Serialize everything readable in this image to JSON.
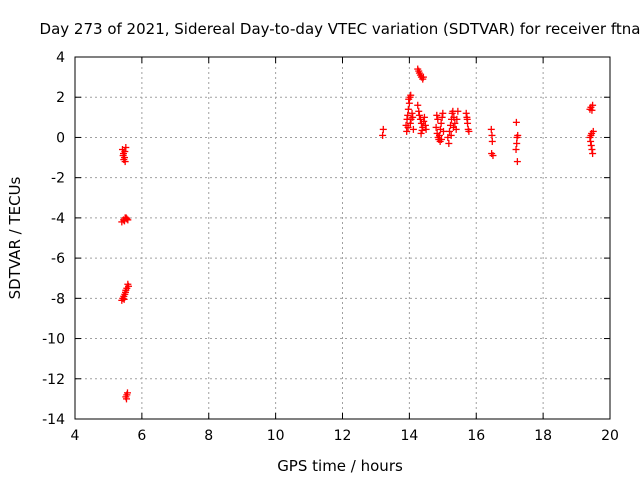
{
  "chart_data": {
    "type": "scatter",
    "title": "Day 273 of 2021, Sidereal Day-to-day VTEC variation (SDTVAR) for receiver ftna",
    "xlabel": "GPS time / hours",
    "ylabel": "SDTVAR / TECUs",
    "xlim": [
      4,
      20
    ],
    "ylim": [
      -14,
      4
    ],
    "xticks": [
      4,
      6,
      8,
      10,
      12,
      14,
      16,
      18,
      20
    ],
    "yticks": [
      -14,
      -12,
      -10,
      -8,
      -6,
      -4,
      -2,
      0,
      2,
      4
    ],
    "grid": true,
    "marker": "plus",
    "color": "#ff0000",
    "series": [
      {
        "name": "SDTVAR",
        "points": [
          [
            5.42,
            -0.6
          ],
          [
            5.45,
            -0.8
          ],
          [
            5.48,
            -1.0
          ],
          [
            5.5,
            -1.2
          ],
          [
            5.52,
            -0.5
          ],
          [
            5.46,
            -1.1
          ],
          [
            5.44,
            -0.9
          ],
          [
            5.49,
            -0.7
          ],
          [
            5.4,
            -4.2
          ],
          [
            5.45,
            -4.1
          ],
          [
            5.5,
            -4.0
          ],
          [
            5.55,
            -4.05
          ],
          [
            5.48,
            -4.15
          ],
          [
            5.53,
            -4.0
          ],
          [
            5.58,
            -4.1
          ],
          [
            5.4,
            -8.1
          ],
          [
            5.43,
            -8.0
          ],
          [
            5.46,
            -7.9
          ],
          [
            5.49,
            -7.8
          ],
          [
            5.52,
            -7.6
          ],
          [
            5.55,
            -7.5
          ],
          [
            5.58,
            -7.3
          ],
          [
            5.6,
            -7.4
          ],
          [
            5.47,
            -8.05
          ],
          [
            5.51,
            -7.7
          ],
          [
            5.52,
            -12.9
          ],
          [
            5.55,
            -12.8
          ],
          [
            5.57,
            -12.7
          ],
          [
            5.54,
            -13.0
          ],
          [
            13.2,
            0.1
          ],
          [
            13.22,
            0.4
          ],
          [
            13.9,
            0.6
          ],
          [
            13.93,
            0.9
          ],
          [
            13.95,
            1.1
          ],
          [
            13.97,
            1.4
          ],
          [
            14.0,
            1.7
          ],
          [
            14.02,
            2.0
          ],
          [
            14.04,
            2.1
          ],
          [
            13.92,
            0.3
          ],
          [
            13.96,
            0.5
          ],
          [
            14.03,
            0.7
          ],
          [
            14.05,
            0.9
          ],
          [
            14.08,
            1.2
          ],
          [
            14.1,
            1.0
          ],
          [
            14.12,
            0.4
          ],
          [
            13.98,
            1.9
          ],
          [
            14.25,
            3.4
          ],
          [
            14.28,
            3.3
          ],
          [
            14.3,
            3.2
          ],
          [
            14.33,
            3.1
          ],
          [
            14.36,
            3.0
          ],
          [
            14.4,
            2.9
          ],
          [
            14.42,
            3.0
          ],
          [
            14.25,
            1.6
          ],
          [
            14.28,
            1.3
          ],
          [
            14.3,
            1.1
          ],
          [
            14.33,
            0.9
          ],
          [
            14.36,
            0.7
          ],
          [
            14.4,
            0.5
          ],
          [
            14.43,
            0.8
          ],
          [
            14.45,
            1.0
          ],
          [
            14.48,
            0.6
          ],
          [
            14.5,
            0.4
          ],
          [
            14.35,
            0.2
          ],
          [
            14.38,
            0.35
          ],
          [
            14.8,
            0.5
          ],
          [
            14.83,
            0.2
          ],
          [
            14.86,
            0.0
          ],
          [
            14.88,
            -0.1
          ],
          [
            14.9,
            0.1
          ],
          [
            14.93,
            0.4
          ],
          [
            14.95,
            0.7
          ],
          [
            14.98,
            1.0
          ],
          [
            15.0,
            1.2
          ],
          [
            14.85,
            0.9
          ],
          [
            14.82,
            1.1
          ],
          [
            14.92,
            -0.2
          ],
          [
            14.96,
            -0.1
          ],
          [
            15.02,
            0.3
          ],
          [
            15.15,
            0.0
          ],
          [
            15.18,
            -0.3
          ],
          [
            15.2,
            0.3
          ],
          [
            15.23,
            0.6
          ],
          [
            15.26,
            0.9
          ],
          [
            15.28,
            1.2
          ],
          [
            15.3,
            1.3
          ],
          [
            15.33,
            1.0
          ],
          [
            15.36,
            0.7
          ],
          [
            15.4,
            0.4
          ],
          [
            15.42,
            0.9
          ],
          [
            15.45,
            1.3
          ],
          [
            15.25,
            0.1
          ],
          [
            15.32,
            0.5
          ],
          [
            15.7,
            1.2
          ],
          [
            15.72,
            1.0
          ],
          [
            15.74,
            0.7
          ],
          [
            15.76,
            0.4
          ],
          [
            15.78,
            0.3
          ],
          [
            15.73,
            0.9
          ],
          [
            16.45,
            0.4
          ],
          [
            16.47,
            0.1
          ],
          [
            16.48,
            -0.2
          ],
          [
            16.46,
            -0.8
          ],
          [
            16.5,
            -0.9
          ],
          [
            17.2,
            0.75
          ],
          [
            17.22,
            0.0
          ],
          [
            17.21,
            -0.3
          ],
          [
            17.19,
            -0.6
          ],
          [
            17.23,
            -1.2
          ],
          [
            17.24,
            0.1
          ],
          [
            19.4,
            1.4
          ],
          [
            19.43,
            1.5
          ],
          [
            19.46,
            1.35
          ],
          [
            19.48,
            1.6
          ],
          [
            19.4,
            0.0
          ],
          [
            19.42,
            -0.2
          ],
          [
            19.44,
            -0.4
          ],
          [
            19.46,
            -0.6
          ],
          [
            19.48,
            -0.8
          ],
          [
            19.45,
            0.2
          ],
          [
            19.5,
            0.3
          ],
          [
            19.43,
            0.1
          ]
        ]
      }
    ]
  }
}
